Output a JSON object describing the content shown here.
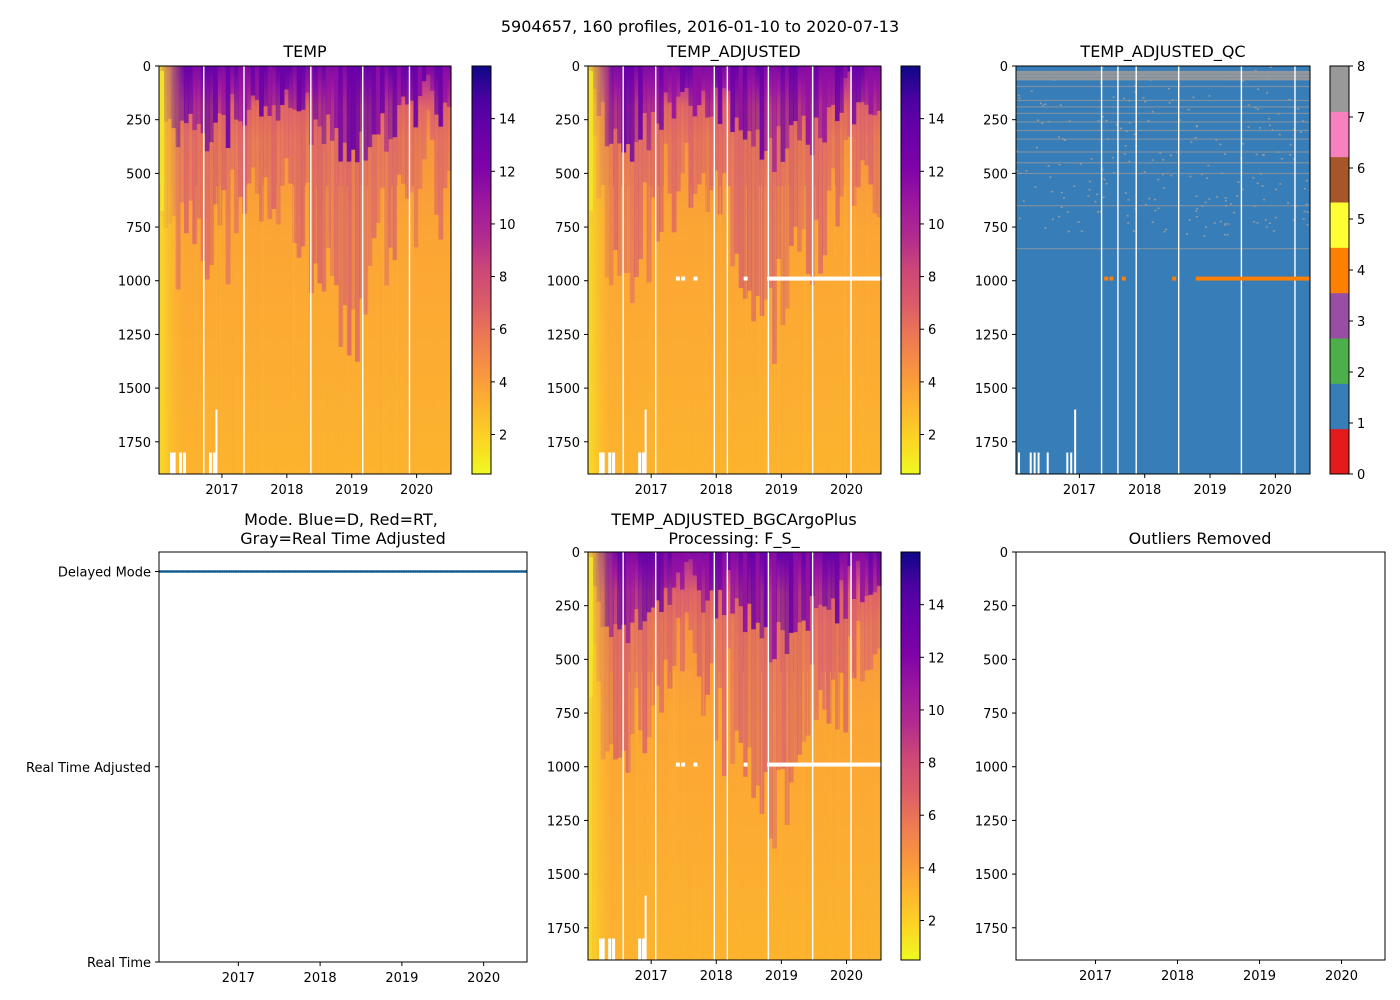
{
  "figure": {
    "suptitle": "5904657, 160 profiles, 2016-01-10 to 2020-07-13"
  },
  "colors": {
    "plasma_r": [
      "#f0f921",
      "#fbd524",
      "#fdb42f",
      "#f89540",
      "#ed7953",
      "#db5c68",
      "#cc4778",
      "#b12a90",
      "#9c179e",
      "#7e03a8",
      "#6a00a8",
      "#4c02a1",
      "#0d0887"
    ],
    "qc": [
      "#e41a1c",
      "#377eb8",
      "#4daf4a",
      "#984ea3",
      "#ff7f00",
      "#ffff33",
      "#a65628",
      "#f781bf",
      "#999999"
    ],
    "mode_line": "#1f77b4"
  },
  "chart_data": [
    {
      "id": "temp",
      "type": "heatmap",
      "title": "TEMP",
      "x_ticks": [
        "2017",
        "2018",
        "2019",
        "2020"
      ],
      "x_tick_values": [
        2017,
        2018,
        2019,
        2020
      ],
      "xlim": [
        2016.03,
        2020.53
      ],
      "y_ticks": [
        "0",
        "250",
        "500",
        "750",
        "1000",
        "1250",
        "1500",
        "1750"
      ],
      "y_tick_values": [
        0,
        250,
        500,
        750,
        1000,
        1250,
        1500,
        1750
      ],
      "ylim": [
        1900,
        0
      ],
      "colorbar": {
        "ticks": [
          "2",
          "4",
          "6",
          "8",
          "10",
          "12",
          "14"
        ],
        "tick_values": [
          2,
          4,
          6,
          8,
          10,
          12,
          14
        ],
        "range": [
          0.5,
          16
        ]
      },
      "gaps": [
        2016.72,
        2017.34,
        2018.37,
        2019.17,
        2019.89
      ],
      "bad_line_depth": null
    },
    {
      "id": "temp_adjusted",
      "type": "heatmap",
      "title": "TEMP_ADJUSTED",
      "x_ticks": [
        "2017",
        "2018",
        "2019",
        "2020"
      ],
      "x_tick_values": [
        2017,
        2018,
        2019,
        2020
      ],
      "xlim": [
        2016.03,
        2020.53
      ],
      "y_ticks": [
        "0",
        "250",
        "500",
        "750",
        "1000",
        "1250",
        "1500",
        "1750"
      ],
      "y_tick_values": [
        0,
        250,
        500,
        750,
        1000,
        1250,
        1500,
        1750
      ],
      "ylim": [
        1900,
        0
      ],
      "colorbar": {
        "ticks": [
          "2",
          "4",
          "6",
          "8",
          "10",
          "12",
          "14"
        ],
        "tick_values": [
          2,
          4,
          6,
          8,
          10,
          12,
          14
        ],
        "range": [
          0.5,
          16
        ]
      },
      "gaps": [
        2016.57,
        2017.07,
        2017.97,
        2018.17,
        2018.8,
        2019.48,
        2020.07
      ],
      "bad_line_depth": 990
    },
    {
      "id": "temp_adjusted_qc",
      "type": "heatmap",
      "title": "TEMP_ADJUSTED_QC",
      "x_ticks": [
        "2017",
        "2018",
        "2019",
        "2020"
      ],
      "x_tick_values": [
        2017,
        2018,
        2019,
        2020
      ],
      "xlim": [
        2016.03,
        2020.53
      ],
      "y_ticks": [
        "0",
        "250",
        "500",
        "750",
        "1000",
        "1250",
        "1500",
        "1750"
      ],
      "y_tick_values": [
        0,
        250,
        500,
        750,
        1000,
        1250,
        1500,
        1750
      ],
      "ylim": [
        1900,
        0
      ],
      "colorbar": {
        "ticks": [
          "0",
          "1",
          "2",
          "3",
          "4",
          "5",
          "6",
          "7",
          "8"
        ],
        "tick_values": [
          0,
          1,
          2,
          3,
          4,
          5,
          6,
          7,
          8
        ],
        "range": [
          0,
          8
        ]
      },
      "qc_flag_dominant": 1,
      "qc_bad_depth": 990,
      "qc_gray_depths": [
        30,
        45,
        60,
        95,
        160,
        190,
        220,
        260,
        300,
        340,
        400,
        450,
        500,
        650,
        850
      ],
      "gaps": [
        2017.34,
        2017.59,
        2017.87,
        2018.52,
        2019.48,
        2020.3
      ]
    },
    {
      "id": "mode",
      "type": "line",
      "title_line1": "Mode. Blue=D, Red=RT,",
      "title_line2": "Gray=Real Time Adjusted",
      "x_ticks": [
        "2017",
        "2018",
        "2019",
        "2020"
      ],
      "x_tick_values": [
        2017,
        2018,
        2019,
        2020
      ],
      "xlim": [
        2016.03,
        2020.53
      ],
      "y_ticks": [
        "Delayed Mode",
        "Real Time Adjusted",
        "Real Time"
      ],
      "y_tick_values": [
        2,
        1,
        0
      ],
      "ylim": [
        0,
        2.1
      ],
      "series": [
        {
          "name": "Delayed Mode",
          "value": 2
        }
      ]
    },
    {
      "id": "bgc",
      "type": "heatmap",
      "title_line1": "TEMP_ADJUSTED_BGCArgoPlus",
      "title_line2": "Processing: F_S_",
      "x_ticks": [
        "2017",
        "2018",
        "2019",
        "2020"
      ],
      "x_tick_values": [
        2017,
        2018,
        2019,
        2020
      ],
      "xlim": [
        2016.03,
        2020.53
      ],
      "y_ticks": [
        "0",
        "250",
        "500",
        "750",
        "1000",
        "1250",
        "1500",
        "1750"
      ],
      "y_tick_values": [
        0,
        250,
        500,
        750,
        1000,
        1250,
        1500,
        1750
      ],
      "ylim": [
        1900,
        0
      ],
      "colorbar": {
        "ticks": [
          "2",
          "4",
          "6",
          "8",
          "10",
          "12",
          "14"
        ],
        "tick_values": [
          2,
          4,
          6,
          8,
          10,
          12,
          14
        ],
        "range": [
          0.5,
          16
        ]
      },
      "gaps": [
        2016.57,
        2017.07,
        2017.97,
        2018.17,
        2018.8,
        2019.48,
        2020.07
      ],
      "bad_line_depth": 990
    },
    {
      "id": "outliers",
      "type": "scatter",
      "title": "Outliers Removed",
      "x_ticks": [
        "2017",
        "2018",
        "2019",
        "2020"
      ],
      "x_tick_values": [
        2017,
        2018,
        2019,
        2020
      ],
      "xlim": [
        2016.03,
        2020.53
      ],
      "y_ticks": [
        "0",
        "250",
        "500",
        "750",
        "1000",
        "1250",
        "1500",
        "1750"
      ],
      "y_tick_values": [
        0,
        250,
        500,
        750,
        1000,
        1250,
        1500,
        1750
      ],
      "ylim": [
        1900,
        0
      ],
      "points": []
    }
  ]
}
